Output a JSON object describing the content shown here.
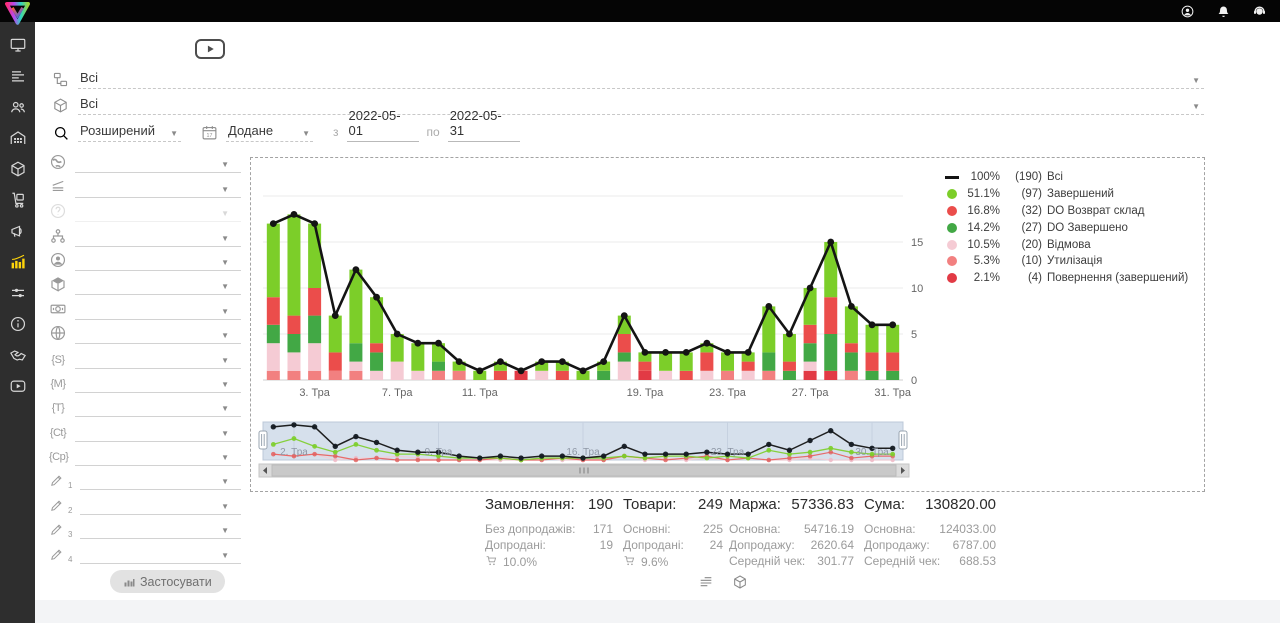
{
  "topbar": {
    "icons": [
      "user",
      "bell",
      "support"
    ]
  },
  "sidebar": {
    "items": [
      {
        "icon": "monitor"
      },
      {
        "icon": "orders"
      },
      {
        "icon": "users"
      },
      {
        "icon": "warehouse"
      },
      {
        "icon": "package"
      },
      {
        "icon": "trolley"
      },
      {
        "icon": "megaphone"
      },
      {
        "icon": "analytics",
        "active": true
      },
      {
        "icon": "sliders"
      },
      {
        "icon": "info"
      },
      {
        "icon": "handshake"
      },
      {
        "icon": "video"
      }
    ]
  },
  "filters": {
    "category": {
      "icon": "hierarchy",
      "value": "Всі"
    },
    "product": {
      "icon": "package",
      "value": "Всі"
    },
    "search_mode": "Розширений",
    "date_field": "Додане",
    "calendar_day": "17",
    "from_label": "з",
    "date_from": "2022-05-01",
    "to_label": "по",
    "date_to": "2022-05-31"
  },
  "left_panel": {
    "rows": [
      {
        "icon": "earth"
      },
      {
        "icon": "pricelist"
      },
      {
        "icon": "question",
        "disabled": true
      },
      {
        "icon": "sitemap"
      },
      {
        "icon": "person"
      },
      {
        "icon": "cube"
      },
      {
        "icon": "banknote"
      },
      {
        "icon": "globe"
      },
      {
        "icon": "glyph",
        "glyph": "{S}"
      },
      {
        "icon": "glyph",
        "glyph": "{M}"
      },
      {
        "icon": "glyph",
        "glyph": "{T}"
      },
      {
        "icon": "glyph",
        "glyph": "{Ct}"
      },
      {
        "icon": "glyph",
        "glyph": "{Cp}"
      },
      {
        "icon": "pencil",
        "num": "1"
      },
      {
        "icon": "pencil",
        "num": "2"
      },
      {
        "icon": "pencil",
        "num": "3"
      },
      {
        "icon": "pencil",
        "num": "4"
      }
    ]
  },
  "apply_button": {
    "label": "Застосувати"
  },
  "chart_data": {
    "type": "line+stacked-bar",
    "days": 31,
    "month_label": "Тра",
    "x_ticks": [
      {
        "day": 3,
        "label": "3. Тра"
      },
      {
        "day": 7,
        "label": "7. Тра"
      },
      {
        "day": 11,
        "label": "11. Тра"
      },
      {
        "day": 19,
        "label": "19. Тра"
      },
      {
        "day": 23,
        "label": "23. Тра"
      },
      {
        "day": 27,
        "label": "27. Тра"
      },
      {
        "day": 31,
        "label": "31. Тра"
      }
    ],
    "y_ticks": [
      0,
      5,
      10,
      15
    ],
    "ylim": [
      0,
      23
    ],
    "series": [
      {
        "name": "Всі",
        "kind": "line",
        "color": "#141414",
        "pct": "100%",
        "count": 190,
        "values": [
          17,
          18,
          17,
          7,
          12,
          9,
          5,
          4,
          4,
          2,
          1,
          2,
          1,
          2,
          2,
          1,
          2,
          7,
          3,
          3,
          3,
          4,
          3,
          3,
          8,
          5,
          10,
          15,
          8,
          6,
          6
        ]
      },
      {
        "name": "Завершений",
        "kind": "bar",
        "color": "#7CCE29",
        "pct": "51.1%",
        "count": 97,
        "values": [
          8,
          11,
          7,
          4,
          8,
          5,
          3,
          3,
          2,
          1,
          1,
          1,
          0,
          1,
          1,
          1,
          1,
          2,
          1,
          2,
          2,
          1,
          2,
          1,
          5,
          3,
          4,
          6,
          4,
          3,
          3
        ]
      },
      {
        "name": "DO Возврат склад",
        "kind": "bar",
        "color": "#EB4D4B",
        "pct": "16.8%",
        "count": 32,
        "values": [
          3,
          2,
          3,
          2,
          0,
          1,
          0,
          0,
          0,
          0,
          0,
          1,
          0,
          0,
          1,
          0,
          0,
          2,
          1,
          0,
          1,
          2,
          0,
          1,
          0,
          1,
          2,
          4,
          1,
          2,
          2
        ]
      },
      {
        "name": "DO Завершено",
        "kind": "bar",
        "color": "#42A845",
        "pct": "14.2%",
        "count": 27,
        "values": [
          2,
          2,
          3,
          0,
          2,
          2,
          0,
          0,
          1,
          0,
          0,
          0,
          0,
          0,
          0,
          0,
          1,
          1,
          0,
          0,
          0,
          0,
          0,
          0,
          2,
          1,
          2,
          4,
          2,
          1,
          1
        ]
      },
      {
        "name": "Відмова",
        "kind": "bar",
        "color": "#F5CBD4",
        "pct": "10.5%",
        "count": 20,
        "values": [
          3,
          2,
          3,
          0,
          1,
          1,
          2,
          1,
          0,
          0,
          0,
          0,
          0,
          1,
          0,
          0,
          0,
          2,
          0,
          1,
          0,
          1,
          0,
          1,
          0,
          0,
          1,
          0,
          0,
          0,
          0
        ]
      },
      {
        "name": "Утилізація",
        "kind": "bar",
        "color": "#F28080",
        "pct": "5.3%",
        "count": 10,
        "values": [
          1,
          1,
          1,
          1,
          1,
          0,
          0,
          0,
          1,
          1,
          0,
          0,
          0,
          0,
          0,
          0,
          0,
          0,
          0,
          0,
          0,
          0,
          1,
          0,
          1,
          0,
          0,
          0,
          1,
          0,
          0
        ]
      },
      {
        "name": "Повернення (завершений)",
        "kind": "bar",
        "color": "#E23A45",
        "pct": "2.1%",
        "count": 4,
        "values": [
          0,
          0,
          0,
          0,
          0,
          0,
          0,
          0,
          0,
          0,
          0,
          0,
          1,
          0,
          0,
          0,
          0,
          0,
          1,
          0,
          0,
          0,
          0,
          0,
          0,
          0,
          1,
          1,
          0,
          0,
          0
        ]
      }
    ],
    "navigator": {
      "x_ticks": [
        {
          "day": 2,
          "label": "2. Тра"
        },
        {
          "day": 9,
          "label": "9. Тра"
        },
        {
          "day": 16,
          "label": "16. Тра"
        },
        {
          "day": 23,
          "label": "23. Тра"
        },
        {
          "day": 30,
          "label": "30. Тра"
        }
      ]
    }
  },
  "stats": {
    "columns": [
      {
        "title": "Замовлення:",
        "value": "190",
        "rows": [
          {
            "label": "Без допродажів:",
            "value": "171"
          },
          {
            "label": "Допродані:",
            "value": "19"
          },
          {
            "icon": "cart",
            "label": "",
            "value": "10.0%"
          }
        ]
      },
      {
        "title": "Товари:",
        "value": "249",
        "rows": [
          {
            "label": "Основні:",
            "value": "225"
          },
          {
            "label": "Допродані:",
            "value": "24"
          },
          {
            "icon": "cart",
            "label": "",
            "value": "9.6%"
          }
        ]
      },
      {
        "title": "Маржа:",
        "value": "57336.83",
        "rows": [
          {
            "label": "Основна:",
            "value": "54716.19"
          },
          {
            "label": "Допродажу:",
            "value": "2620.64"
          },
          {
            "label": "Середній чек:",
            "value": "301.77"
          }
        ]
      },
      {
        "title": "Сума:",
        "value": "130820.00",
        "rows": [
          {
            "label": "Основна:",
            "value": "124033.00"
          },
          {
            "label": "Допродажу:",
            "value": "6787.00"
          },
          {
            "label": "Середній чек:",
            "value": "688.53"
          }
        ]
      }
    ]
  },
  "footer_toggles": [
    {
      "icon": "list"
    },
    {
      "icon": "package"
    }
  ]
}
